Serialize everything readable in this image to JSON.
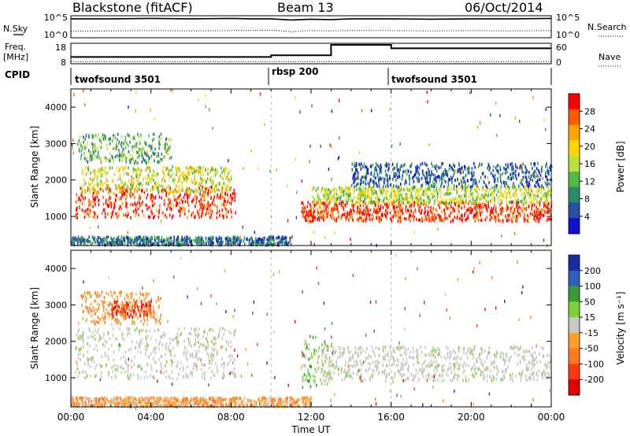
{
  "header": {
    "station": "Blackstone (fitACF)",
    "beam": "Beam 13",
    "date": "06/Oct/2014"
  },
  "panel_labels": {
    "nsky": "N.Sky",
    "freq": "Freq.",
    "freq_unit": "[MHz]",
    "cpid": "CPID",
    "nsearch": "N.Search",
    "nave": "Nave"
  },
  "chart_data": [
    {
      "type": "line",
      "panel": "noise",
      "left_ticks": [
        "10^5",
        "10^0"
      ],
      "right_ticks": [
        "10^5",
        "10^0"
      ],
      "series": [
        {
          "name": "N.Sky",
          "style": "solid",
          "x": [
            0,
            2,
            4,
            6,
            8,
            9,
            10,
            11,
            12,
            13,
            14,
            16,
            18,
            20,
            22,
            24
          ],
          "y": [
            4.6,
            4.6,
            4.7,
            4.6,
            4.7,
            4.6,
            4.6,
            4.3,
            4.5,
            4.4,
            4.6,
            4.6,
            4.5,
            4.6,
            4.6,
            4.7
          ]
        },
        {
          "name": "N.Search",
          "style": "dotted",
          "x": [
            0,
            2,
            4,
            6,
            8,
            9,
            10,
            11,
            12,
            13,
            14,
            16,
            18,
            20,
            22,
            24
          ],
          "y": [
            1.3,
            1.4,
            1.5,
            1.4,
            1.5,
            1.5,
            1.6,
            1.2,
            1.5,
            1.4,
            1.5,
            1.5,
            1.4,
            1.5,
            1.4,
            1.5
          ]
        }
      ]
    },
    {
      "type": "line",
      "panel": "frequency",
      "left_ticks": [
        "18",
        "8"
      ],
      "right_ticks": [
        "60",
        "0"
      ],
      "series": [
        {
          "name": "Freq.",
          "style": "solid",
          "x": [
            0,
            10,
            10,
            13,
            13,
            16,
            16,
            24
          ],
          "y": [
            11,
            11,
            12,
            12,
            18,
            18,
            16,
            16
          ]
        },
        {
          "name": "Nave",
          "style": "dotted",
          "x": [
            0,
            24
          ],
          "y": [
            2,
            2
          ]
        }
      ]
    },
    {
      "type": "table",
      "panel": "cpid",
      "segments": [
        {
          "label": "twofsound 3501",
          "start": 0,
          "end": 10
        },
        {
          "label": "rbsp 200",
          "start": 10,
          "end": 16
        },
        {
          "label": "twofsound 3501",
          "start": 16,
          "end": 24
        }
      ]
    },
    {
      "type": "heatmap",
      "panel": "power",
      "xlabel": "",
      "ylabel": "Slant Range [km]",
      "xlim": [
        0,
        24
      ],
      "ylim": [
        200,
        4500
      ],
      "y_ticks": [
        1000,
        2000,
        3000,
        4000
      ],
      "colorbar_label": "Power [dB]",
      "colorbar_ticks": [
        "28",
        "24",
        "20",
        "16",
        "12",
        "8",
        "4"
      ],
      "colorbar_colors": [
        "#ff0000",
        "#ff5a00",
        "#ffa500",
        "#ffd700",
        "#bfe03c",
        "#52b848",
        "#2a8a6a",
        "#2850a0",
        "#1010d0"
      ],
      "features": [
        {
          "x0": 0.2,
          "x1": 8.2,
          "r0": 1000,
          "r1": 1850,
          "level": 0.95
        },
        {
          "x0": 0.5,
          "x1": 8.0,
          "r0": 1700,
          "r1": 2400,
          "level": 0.55
        },
        {
          "x0": 0.3,
          "x1": 5.0,
          "r0": 2500,
          "r1": 3300,
          "level": 0.35
        },
        {
          "x0": 11.5,
          "x1": 24.0,
          "r0": 900,
          "r1": 1450,
          "level": 0.95
        },
        {
          "x0": 12.0,
          "x1": 24.0,
          "r0": 1400,
          "r1": 1850,
          "level": 0.5
        },
        {
          "x0": 14.0,
          "x1": 24.0,
          "r0": 1850,
          "r1": 2500,
          "level": 0.15
        },
        {
          "x0": 0.0,
          "x1": 11.0,
          "r0": 250,
          "r1": 480,
          "level": 0.2
        }
      ]
    },
    {
      "type": "heatmap",
      "panel": "velocity",
      "xlabel": "Time UT",
      "ylabel": "Slant Range [km]",
      "xlim": [
        0,
        24
      ],
      "ylim": [
        200,
        4500
      ],
      "x_ticks": [
        "00:00",
        "04:00",
        "08:00",
        "12:00",
        "16:00",
        "20:00",
        "00:00"
      ],
      "y_ticks": [
        1000,
        2000,
        3000,
        4000
      ],
      "colorbar_label": "Velocity [m s⁻¹]",
      "colorbar_ticks": [
        "200",
        "100",
        "50",
        "15",
        "-15",
        "-50",
        "-100",
        "-200"
      ],
      "colorbar_colors": [
        "#1a2aa0",
        "#2d62b8",
        "#3a9a3a",
        "#7fcf3a",
        "#c8c8c0",
        "#ffa030",
        "#ff7a20",
        "#ff3a10",
        "#e00000"
      ],
      "features": [
        {
          "x0": 0.2,
          "x1": 8.2,
          "r0": 1000,
          "r1": 2400,
          "vel": "low"
        },
        {
          "x0": 0.5,
          "x1": 4.5,
          "r0": 2500,
          "r1": 3400,
          "vel": "neg"
        },
        {
          "x0": 2.0,
          "x1": 4.0,
          "r0": 2700,
          "r1": 3150,
          "vel": "strong_neg"
        },
        {
          "x0": 11.5,
          "x1": 13.0,
          "r0": 800,
          "r1": 2200,
          "vel": "pos"
        },
        {
          "x0": 12.5,
          "x1": 24.0,
          "r0": 950,
          "r1": 1900,
          "vel": "low"
        },
        {
          "x0": 0.0,
          "x1": 12.0,
          "r0": 250,
          "r1": 500,
          "vel": "neg"
        }
      ]
    }
  ]
}
